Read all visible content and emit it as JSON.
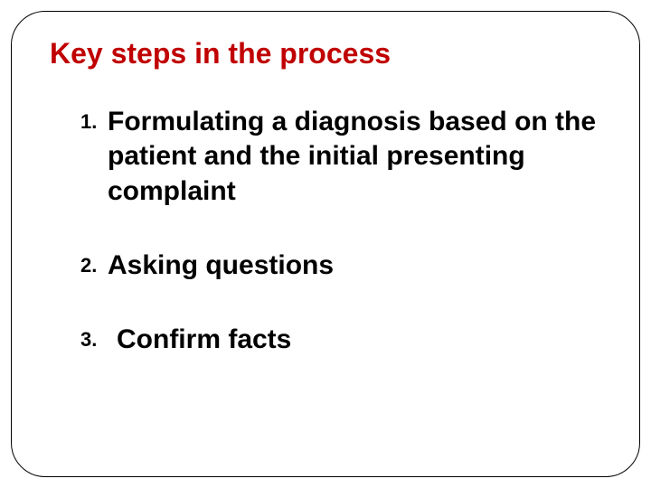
{
  "slide": {
    "title": "Key steps in the process",
    "title_color": "#c00000",
    "text_color": "#000000",
    "background_color": "#ffffff",
    "border_color": "#000000",
    "border_radius": 38,
    "title_fontsize": 32,
    "item_fontsize": 30,
    "number_fontsize": 22,
    "items": [
      {
        "number": "1.",
        "text": "Formulating a diagnosis based on the patient and the initial presenting complaint"
      },
      {
        "number": "2.",
        "text": "Asking questions"
      },
      {
        "number": "3.",
        "text": "Confirm facts"
      }
    ]
  }
}
